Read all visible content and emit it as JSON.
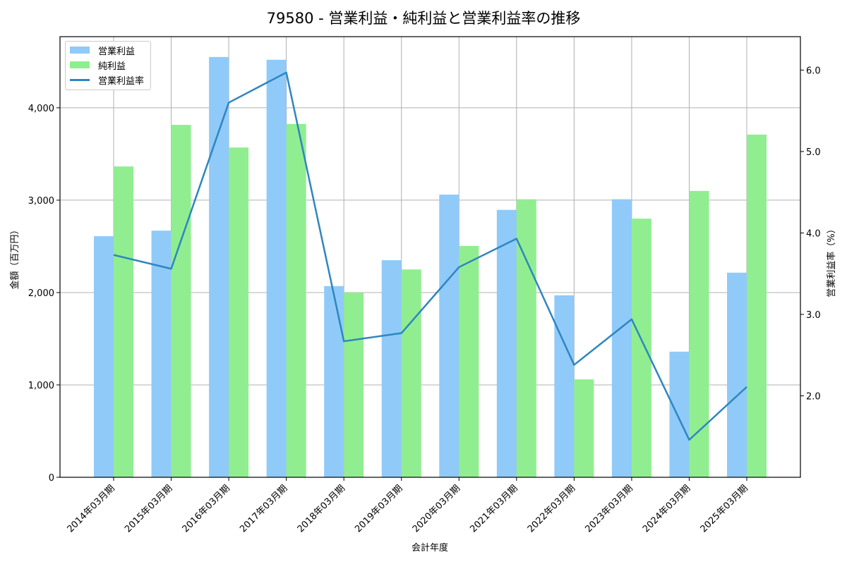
{
  "title": "79580 - 営業利益・純利益と営業利益率の推移",
  "legend": {
    "items": [
      {
        "label": "営業利益",
        "color": "#90caf9",
        "kind": "bar"
      },
      {
        "label": "純利益",
        "color": "#90ee90",
        "kind": "bar"
      },
      {
        "label": "営業利益率",
        "color": "#2e86c1",
        "kind": "line"
      }
    ]
  },
  "axes": {
    "xlabel": "会計年度",
    "ylabel_left": "金額（百万円）",
    "ylabel_right": "営業利益率（%）",
    "left_ticks": [
      "0",
      "1,000",
      "2,000",
      "3,000",
      "4,000"
    ],
    "right_ticks": [
      "2.0",
      "3.0",
      "4.0",
      "5.0",
      "6.0"
    ]
  },
  "chart_data": {
    "type": "bar",
    "title": "79580 - 営業利益・純利益と営業利益率の推移",
    "xlabel": "会計年度",
    "ylabel": "金額（百万円）",
    "ylabel_right": "営業利益率（%）",
    "categories": [
      "2014年03月期",
      "2015年03月期",
      "2016年03月期",
      "2017年03月期",
      "2018年03月期",
      "2019年03月期",
      "2020年03月期",
      "2021年03月期",
      "2022年03月期",
      "2023年03月期",
      "2024年03月期",
      "2025年03月期"
    ],
    "series": [
      {
        "name": "営業利益",
        "type": "bar",
        "axis": "left",
        "color": "#90caf9",
        "values": [
          2610,
          2670,
          4550,
          4520,
          2070,
          2350,
          3060,
          2895,
          1970,
          3010,
          1360,
          2215
        ]
      },
      {
        "name": "純利益",
        "type": "bar",
        "axis": "left",
        "color": "#90ee90",
        "values": [
          3365,
          3815,
          3570,
          3825,
          2000,
          2250,
          2505,
          3010,
          1060,
          2800,
          3100,
          3710
        ]
      },
      {
        "name": "営業利益率",
        "type": "line",
        "axis": "right",
        "color": "#2e86c1",
        "values": [
          3.73,
          3.56,
          5.6,
          5.97,
          2.67,
          2.77,
          3.58,
          3.93,
          2.38,
          2.94,
          1.46,
          2.11
        ]
      }
    ],
    "ylim": [
      0,
      4770
    ],
    "ylim_right": [
      1.0,
      6.41
    ],
    "grid": true,
    "legend_position": "upper left"
  }
}
